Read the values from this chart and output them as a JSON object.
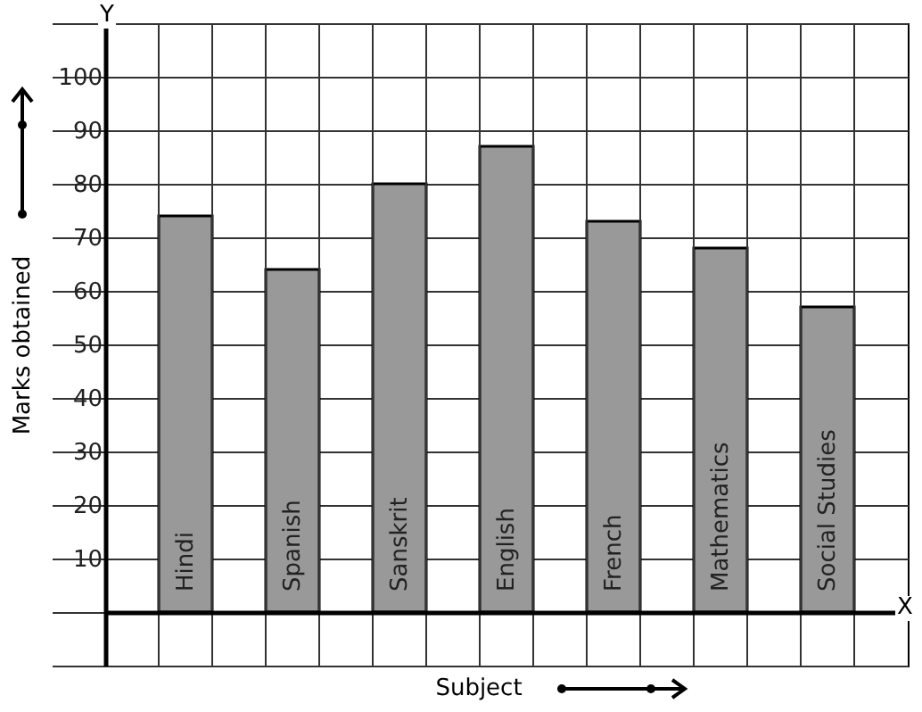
{
  "chart_data": {
    "type": "bar",
    "xlabel": "Subject",
    "ylabel": "Marks obtained",
    "categories": [
      "Hindi",
      "Spanish",
      "Sanskrit",
      "English",
      "French",
      "Mathematics",
      "Social Studies"
    ],
    "values": [
      74,
      64,
      80,
      87,
      73,
      68,
      57
    ],
    "color": "#999999",
    "ylim": [
      -10,
      110
    ],
    "yticks": [
      10,
      20,
      30,
      40,
      50,
      60,
      70,
      80,
      90,
      100
    ],
    "grid": true,
    "annotations": [
      "Y",
      "X"
    ]
  }
}
